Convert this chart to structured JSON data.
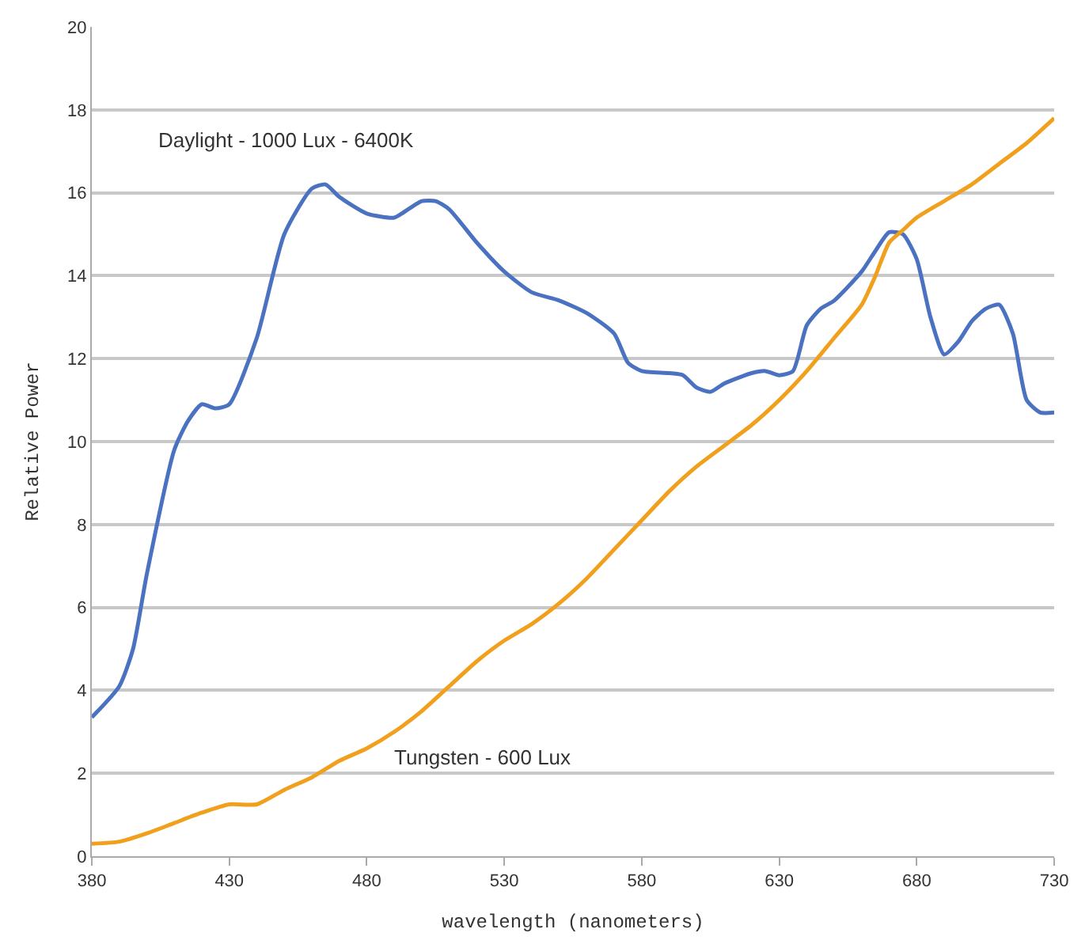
{
  "chart_data": {
    "type": "line",
    "xlabel": "wavelength (nanometers)",
    "ylabel": "Relative Power",
    "xlim": [
      380,
      730
    ],
    "xticks": [
      380,
      430,
      480,
      530,
      580,
      630,
      680,
      730
    ],
    "ylim": [
      0,
      20
    ],
    "yticks": [
      0,
      2,
      4,
      6,
      8,
      10,
      12,
      14,
      16,
      18,
      20
    ],
    "grid": "y",
    "legend": false,
    "line_style": "solid",
    "marker": "none",
    "series": [
      {
        "name": "Daylight - 1000 Lux - 6400K",
        "color": "#4a72c0",
        "x": [
          380,
          390,
          395,
          400,
          410,
          415,
          420,
          425,
          430,
          440,
          450,
          460,
          465,
          470,
          480,
          490,
          495,
          500,
          505,
          510,
          520,
          530,
          540,
          550,
          560,
          570,
          575,
          580,
          590,
          595,
          600,
          605,
          610,
          620,
          625,
          630,
          635,
          640,
          645,
          650,
          660,
          665,
          670,
          675,
          680,
          685,
          690,
          695,
          700,
          705,
          710,
          715,
          720,
          725,
          730
        ],
        "values": [
          3.35,
          4.1,
          5,
          6.8,
          9.8,
          10.5,
          10.9,
          10.8,
          10.9,
          12.5,
          15,
          16.1,
          16.2,
          15.9,
          15.5,
          15.4,
          15.6,
          15.8,
          15.8,
          15.6,
          14.8,
          14.1,
          13.6,
          13.4,
          13.1,
          12.6,
          11.9,
          11.7,
          11.65,
          11.6,
          11.3,
          11.2,
          11.4,
          11.65,
          11.7,
          11.6,
          11.7,
          12.8,
          13.2,
          13.4,
          14.1,
          14.6,
          15.05,
          15,
          14.4,
          13,
          12.1,
          12.4,
          12.9,
          13.2,
          13.3,
          12.6,
          11,
          10.7,
          10.7
        ]
      },
      {
        "name": "Tungsten - 600 Lux",
        "color": "#f0a01c",
        "x": [
          380,
          390,
          400,
          410,
          420,
          430,
          440,
          450,
          460,
          470,
          480,
          490,
          500,
          510,
          520,
          530,
          540,
          550,
          560,
          570,
          580,
          590,
          600,
          610,
          620,
          630,
          640,
          650,
          660,
          665,
          670,
          675,
          680,
          690,
          700,
          710,
          720,
          730
        ],
        "values": [
          0.3,
          0.35,
          0.55,
          0.8,
          1.05,
          1.25,
          1.25,
          1.6,
          1.9,
          2.3,
          2.6,
          3,
          3.5,
          4.1,
          4.7,
          5.2,
          5.6,
          6.1,
          6.7,
          7.4,
          8.1,
          8.8,
          9.4,
          9.9,
          10.4,
          11,
          11.7,
          12.5,
          13.3,
          14,
          14.8,
          15.1,
          15.4,
          15.8,
          16.2,
          16.7,
          17.2,
          17.8
        ]
      }
    ]
  }
}
